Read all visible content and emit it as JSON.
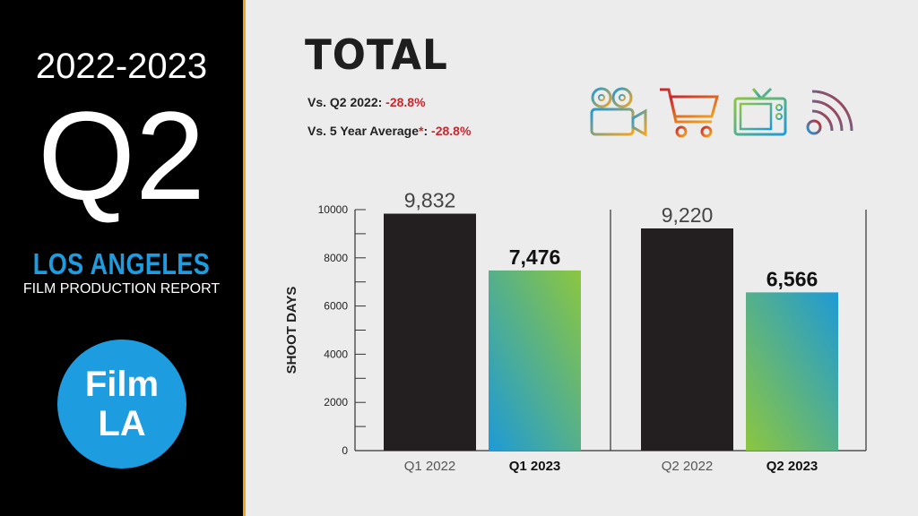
{
  "sidebar": {
    "year_range": "2022-2023",
    "quarter": "Q2",
    "city": "LOS ANGELES",
    "report": "FILM PRODUCTION REPORT",
    "logo_line1": "Film",
    "logo_line2": "LA"
  },
  "header": {
    "title": "TOTAL",
    "vs_q2_label": "Vs. Q2 2022: ",
    "vs_q2_value": "-28.8%",
    "vs_avg_label": "Vs. 5 Year Average",
    "vs_avg_star": "*",
    "vs_avg_colon": ": ",
    "vs_avg_value": "-28.8%"
  },
  "icons": [
    "film-camera-icon",
    "shopping-cart-icon",
    "television-icon",
    "wireless-signal-icon"
  ],
  "colors": {
    "accent_blue": "#1d9ce0",
    "accent_orange": "#f2a61d",
    "negative_red": "#c7282f",
    "bar_dark": "#231f20",
    "gradient_green": "#8cc63f",
    "gradient_blue": "#1e9ad6"
  },
  "chart_data": {
    "type": "bar",
    "ylabel": "SHOOT DAYS",
    "ylim": [
      0,
      10000
    ],
    "yticks": [
      0,
      2000,
      4000,
      6000,
      8000,
      10000
    ],
    "grid": false,
    "groups": [
      {
        "bars": [
          {
            "category": "Q1 2022",
            "value": 9832,
            "label": "9,832",
            "style": "dark"
          },
          {
            "category": "Q1 2023",
            "value": 7476,
            "label": "7,476",
            "style": "gradient-up"
          }
        ]
      },
      {
        "bars": [
          {
            "category": "Q2 2022",
            "value": 9220,
            "label": "9,220",
            "style": "dark"
          },
          {
            "category": "Q2 2023",
            "value": 6566,
            "label": "6,566",
            "style": "gradient-down"
          }
        ]
      }
    ]
  }
}
